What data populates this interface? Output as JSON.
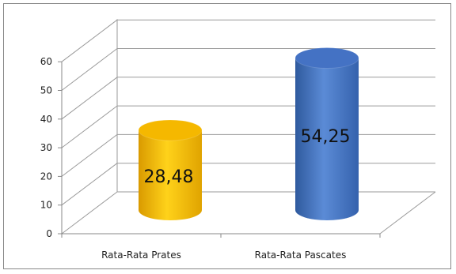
{
  "chart_data": {
    "type": "bar",
    "style": "3d-cylinder",
    "categories": [
      "Rata-Rata Prates",
      "Rata-Rata Pascates"
    ],
    "values": [
      28.48,
      54.25
    ],
    "data_labels": [
      "28,48",
      "54,25"
    ],
    "colors": [
      "#F5B800",
      "#4472C4"
    ],
    "ylim": [
      0,
      60
    ],
    "yticks": [
      0,
      10,
      20,
      30,
      40,
      50,
      60
    ],
    "ytick_labels": [
      "0",
      "10",
      "20",
      "30",
      "40",
      "50",
      "60"
    ],
    "grid": true,
    "legend": false
  }
}
